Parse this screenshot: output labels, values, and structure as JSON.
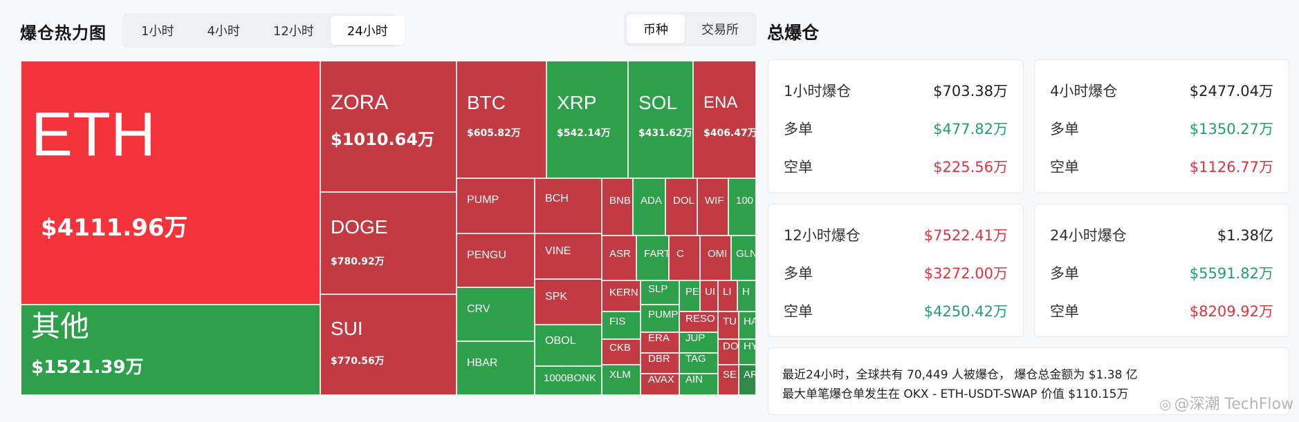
{
  "header": {
    "title": "爆仓热力图",
    "time_tabs": [
      "1小时",
      "4小时",
      "12小时",
      "24小时"
    ],
    "active_time_tab": "24小时",
    "mode_tabs": [
      "币种",
      "交易所"
    ],
    "active_mode_tab": "币种",
    "total_title": "总爆仓"
  },
  "treemap": {
    "tiles": [
      {
        "symbol": "ETH",
        "value": "$4111.96万",
        "color": "#f5333b"
      },
      {
        "symbol": "其他",
        "value": "$1521.39万",
        "color": "#2ea04c"
      },
      {
        "symbol": "ZORA",
        "value": "$1010.64万",
        "color": "#c23b43"
      },
      {
        "symbol": "DOGE",
        "value": "$780.92万",
        "color": "#c23b43"
      },
      {
        "symbol": "SUI",
        "value": "$770.56万",
        "color": "#c23b43"
      },
      {
        "symbol": "BTC",
        "value": "$605.82万",
        "color": "#c23b43"
      },
      {
        "symbol": "XRP",
        "value": "$542.14万",
        "color": "#2ea04c"
      },
      {
        "symbol": "SOL",
        "value": "$431.62万",
        "color": "#2ea04c"
      },
      {
        "symbol": "ENA",
        "value": "$406.47万",
        "color": "#c23b43"
      },
      {
        "symbol": "PUMP",
        "value": "",
        "color": "#c23b43"
      },
      {
        "symbol": "PENGU",
        "value": "",
        "color": "#c23b43"
      },
      {
        "symbol": "CRV",
        "value": "",
        "color": "#2ea04c"
      },
      {
        "symbol": "HBAR",
        "value": "",
        "color": "#2ea04c"
      },
      {
        "symbol": "BCH",
        "value": "",
        "color": "#c23b43"
      },
      {
        "symbol": "VINE",
        "value": "",
        "color": "#c23b43"
      },
      {
        "symbol": "SPK",
        "value": "",
        "color": "#c23b43"
      },
      {
        "symbol": "OBOL",
        "value": "",
        "color": "#2ea04c"
      },
      {
        "symbol": "1000BONK",
        "value": "",
        "color": "#2ea04c"
      },
      {
        "symbol": "BNB",
        "value": "",
        "color": "#c23b43"
      },
      {
        "symbol": "ADA",
        "value": "",
        "color": "#2ea04c"
      },
      {
        "symbol": "DOL",
        "value": "",
        "color": "#c23b43"
      },
      {
        "symbol": "WIF",
        "value": "",
        "color": "#c23b43"
      },
      {
        "symbol": "100",
        "value": "",
        "color": "#2ea04c"
      },
      {
        "symbol": "ASR",
        "value": "",
        "color": "#c23b43"
      },
      {
        "symbol": "FART",
        "value": "",
        "color": "#2ea04c"
      },
      {
        "symbol": "C",
        "value": "",
        "color": "#c23b43"
      },
      {
        "symbol": "OMI",
        "value": "",
        "color": "#c23b43"
      },
      {
        "symbol": "GLN",
        "value": "",
        "color": "#2ea04c"
      },
      {
        "symbol": "KERN",
        "value": "",
        "color": "#c23b43"
      },
      {
        "symbol": "SLP",
        "value": "",
        "color": "#2ea04c"
      },
      {
        "symbol": "PE",
        "value": "",
        "color": "#2ea04c"
      },
      {
        "symbol": "UI",
        "value": "",
        "color": "#c23b43"
      },
      {
        "symbol": "LI",
        "value": "",
        "color": "#c23b43"
      },
      {
        "symbol": "H",
        "value": "",
        "color": "#2ea04c"
      },
      {
        "symbol": "PUMP",
        "value": "",
        "color": "#2ea04c"
      },
      {
        "symbol": "FIS",
        "value": "",
        "color": "#2ea04c"
      },
      {
        "symbol": "RESO",
        "value": "",
        "color": "#c23b43"
      },
      {
        "symbol": "TU",
        "value": "",
        "color": "#c23b43"
      },
      {
        "symbol": "HA",
        "value": "",
        "color": "#2ea04c"
      },
      {
        "symbol": "ERA",
        "value": "",
        "color": "#c23b43"
      },
      {
        "symbol": "JUP",
        "value": "",
        "color": "#2ea04c"
      },
      {
        "symbol": "CKB",
        "value": "",
        "color": "#c23b43"
      },
      {
        "symbol": "DO",
        "value": "",
        "color": "#c23b43"
      },
      {
        "symbol": "HY",
        "value": "",
        "color": "#2ea04c"
      },
      {
        "symbol": "DBR",
        "value": "",
        "color": "#c23b43"
      },
      {
        "symbol": "TAG",
        "value": "",
        "color": "#2ea04c"
      },
      {
        "symbol": "XLM",
        "value": "",
        "color": "#2ea04c"
      },
      {
        "symbol": "AVAX",
        "value": "",
        "color": "#c23b43"
      },
      {
        "symbol": "AIN",
        "value": "",
        "color": "#2ea04c"
      },
      {
        "symbol": "SE",
        "value": "",
        "color": "#c23b43"
      },
      {
        "symbol": "AR",
        "value": "",
        "color": "#2f8a47"
      }
    ]
  },
  "stats": {
    "cards": [
      {
        "title": "1小时爆仓",
        "total": "$703.38万",
        "total_color": "dark",
        "long_label": "多单",
        "long": "$477.82万",
        "long_color": "green",
        "short_label": "空单",
        "short": "$225.56万",
        "short_color": "red"
      },
      {
        "title": "4小时爆仓",
        "total": "$2477.04万",
        "total_color": "dark",
        "long_label": "多单",
        "long": "$1350.27万",
        "long_color": "green",
        "short_label": "空单",
        "short": "$1126.77万",
        "short_color": "red"
      },
      {
        "title": "12小时爆仓",
        "total": "$7522.41万",
        "total_color": "red",
        "long_label": "多单",
        "long": "$3272.00万",
        "long_color": "red",
        "short_label": "空单",
        "short": "$4250.42万",
        "short_color": "green"
      },
      {
        "title": "24小时爆仓",
        "total": "$1.38亿",
        "total_color": "dark",
        "long_label": "多单",
        "long": "$5591.82万",
        "long_color": "green",
        "short_label": "空单",
        "short": "$8209.92万",
        "short_color": "red"
      }
    ],
    "summary_line1": "最近24小时，全球共有 70,449 人被爆仓， 爆仓总金额为 $1.38 亿",
    "summary_line2": "最大单笔爆仓单发生在 OKX - ETH-USDT-SWAP 价值 $110.15万"
  },
  "watermark": {
    "icon": "weibo-icon",
    "text": "@深潮 TechFlow"
  }
}
